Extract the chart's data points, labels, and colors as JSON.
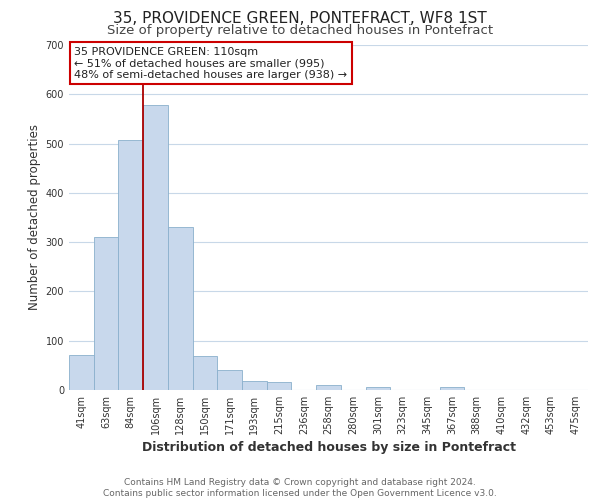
{
  "title": "35, PROVIDENCE GREEN, PONTEFRACT, WF8 1ST",
  "subtitle": "Size of property relative to detached houses in Pontefract",
  "xlabel": "Distribution of detached houses by size in Pontefract",
  "ylabel": "Number of detached properties",
  "footer_line1": "Contains HM Land Registry data © Crown copyright and database right 2024.",
  "footer_line2": "Contains public sector information licensed under the Open Government Licence v3.0.",
  "bar_labels": [
    "41sqm",
    "63sqm",
    "84sqm",
    "106sqm",
    "128sqm",
    "150sqm",
    "171sqm",
    "193sqm",
    "215sqm",
    "236sqm",
    "258sqm",
    "280sqm",
    "301sqm",
    "323sqm",
    "345sqm",
    "367sqm",
    "388sqm",
    "410sqm",
    "432sqm",
    "453sqm",
    "475sqm"
  ],
  "bar_values": [
    72,
    310,
    507,
    578,
    330,
    68,
    40,
    18,
    17,
    0,
    11,
    0,
    7,
    0,
    0,
    6,
    0,
    0,
    0,
    0,
    0
  ],
  "bar_color": "#c8d8ec",
  "bar_edge_color": "#8ab0cc",
  "highlight_index": 3,
  "highlight_line_color": "#aa0000",
  "ylim": [
    0,
    700
  ],
  "yticks": [
    0,
    100,
    200,
    300,
    400,
    500,
    600,
    700
  ],
  "annotation_box_text": [
    "35 PROVIDENCE GREEN: 110sqm",
    "← 51% of detached houses are smaller (995)",
    "48% of semi-detached houses are larger (938) →"
  ],
  "annotation_box_color": "#ffffff",
  "annotation_box_edge_color": "#cc0000",
  "background_color": "#ffffff",
  "grid_color": "#c8d8e8",
  "title_fontsize": 11,
  "subtitle_fontsize": 9.5,
  "xlabel_fontsize": 9,
  "ylabel_fontsize": 8.5,
  "tick_fontsize": 7,
  "annotation_fontsize": 8,
  "footer_fontsize": 6.5
}
